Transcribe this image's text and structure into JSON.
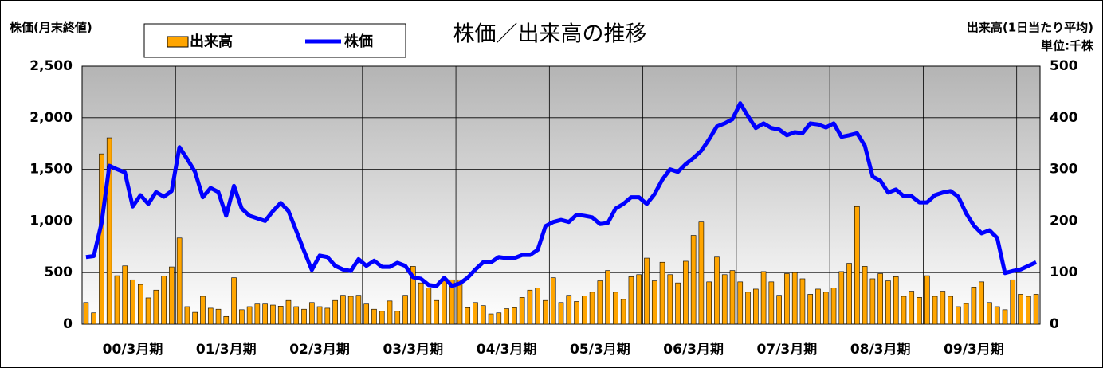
{
  "chart_data": {
    "type": "bar-line",
    "title": "株価／出来高の推移",
    "y_label": "株価(月末終値)",
    "y2_label": "出来高(1日当たり平均)",
    "y2_unit": "単位:千株",
    "categories": [
      null,
      null,
      null,
      null,
      null,
      null,
      "00/3月期",
      null,
      null,
      null,
      null,
      null,
      null,
      null,
      null,
      null,
      null,
      null,
      "01/3月期",
      null,
      null,
      null,
      null,
      null,
      null,
      null,
      null,
      null,
      null,
      null,
      "02/3月期",
      null,
      null,
      null,
      null,
      null,
      null,
      null,
      null,
      null,
      null,
      null,
      "03/3月期",
      null,
      null,
      null,
      null,
      null,
      null,
      null,
      null,
      null,
      null,
      null,
      "04/3月期",
      null,
      null,
      null,
      null,
      null,
      null,
      null,
      null,
      null,
      null,
      null,
      "05/3月期",
      null,
      null,
      null,
      null,
      null,
      null,
      null,
      null,
      null,
      null,
      null,
      "06/3月期",
      null,
      null,
      null,
      null,
      null,
      null,
      null,
      null,
      null,
      null,
      null,
      "07/3月期",
      null,
      null,
      null,
      null,
      null,
      null,
      null,
      null,
      null,
      null,
      null,
      "08/3月期",
      null,
      null,
      null,
      null,
      null,
      null,
      null,
      null,
      null,
      null,
      null,
      "09/3月期",
      null,
      null,
      null,
      null,
      null,
      null,
      null,
      null
    ],
    "series": [
      {
        "name": "出来高",
        "type": "bar",
        "axis": "y2",
        "color": "#ffa500",
        "values": [
          42,
          22,
          330,
          361,
          94,
          113,
          86,
          77,
          51,
          66,
          93,
          111,
          167,
          34,
          23,
          54,
          31,
          29,
          15,
          90,
          28,
          34,
          39,
          39,
          37,
          35,
          46,
          34,
          29,
          42,
          34,
          31,
          46,
          56,
          54,
          56,
          39,
          29,
          25,
          45,
          25,
          56,
          112,
          80,
          70,
          46,
          84,
          86,
          86,
          32,
          42,
          36,
          20,
          22,
          30,
          32,
          52,
          66,
          70,
          46,
          90,
          42,
          56,
          44,
          55,
          62,
          84,
          104,
          62,
          48,
          92,
          96,
          128,
          84,
          120,
          96,
          80,
          122,
          172,
          198,
          82,
          130,
          96,
          104,
          82,
          62,
          68,
          102,
          82,
          56,
          98,
          100,
          88,
          58,
          68,
          62,
          70,
          102,
          118,
          228,
          112,
          88,
          98,
          84,
          92,
          54,
          64,
          52,
          94,
          54,
          64,
          54,
          34,
          40,
          72,
          82,
          42,
          34,
          28,
          86,
          58,
          54,
          58
        ]
      },
      {
        "name": "株価",
        "type": "line",
        "axis": "y",
        "color": "#0000ff",
        "values": [
          650,
          660,
          980,
          1535,
          1500,
          1470,
          1140,
          1250,
          1165,
          1280,
          1235,
          1290,
          1715,
          1600,
          1475,
          1230,
          1320,
          1280,
          1050,
          1340,
          1120,
          1050,
          1025,
          1000,
          1095,
          1175,
          1095,
          905,
          710,
          525,
          665,
          650,
          565,
          530,
          515,
          630,
          565,
          615,
          555,
          555,
          595,
          565,
          455,
          440,
          380,
          370,
          450,
          370,
          395,
          450,
          530,
          600,
          600,
          650,
          640,
          640,
          670,
          670,
          720,
          950,
          990,
          1010,
          990,
          1060,
          1050,
          1035,
          970,
          980,
          1120,
          1165,
          1230,
          1230,
          1165,
          1260,
          1400,
          1500,
          1475,
          1550,
          1610,
          1680,
          1790,
          1915,
          1945,
          1985,
          2140,
          2015,
          1900,
          1945,
          1900,
          1885,
          1830,
          1860,
          1850,
          1945,
          1935,
          1905,
          1945,
          1815,
          1830,
          1850,
          1730,
          1430,
          1390,
          1275,
          1305,
          1240,
          1240,
          1180,
          1180,
          1250,
          1275,
          1290,
          1235,
          1075,
          955,
          880,
          910,
          835,
          495,
          515,
          530,
          565,
          600
        ]
      }
    ],
    "ylim": [
      0,
      2500
    ],
    "yticks": [
      0,
      {
        "value": 500,
        "label": "500"
      },
      {
        "value": 1000,
        "label": "1,000"
      },
      {
        "value": 1500,
        "label": "1,500"
      },
      {
        "value": 2000,
        "label": "2,000"
      },
      {
        "value": 2500,
        "label": "2,500"
      }
    ],
    "y2lim": [
      0,
      500
    ],
    "y2ticks": [
      0,
      100,
      200,
      300,
      400,
      500
    ],
    "grid": true
  }
}
